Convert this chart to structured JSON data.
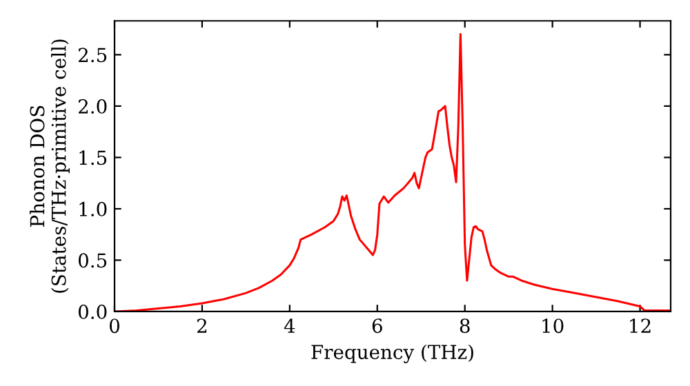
{
  "chart_data": {
    "type": "line",
    "xlabel": "Frequency (THz)",
    "ylabel": "Phonon DOS\n(States/THz·primitive cell)",
    "x": [
      0,
      0.5,
      1,
      1.5,
      2,
      2.5,
      3,
      3.3,
      3.6,
      3.8,
      4.0,
      4.1,
      4.2,
      4.25,
      4.5,
      4.8,
      5.0,
      5.1,
      5.15,
      5.2,
      5.25,
      5.3,
      5.4,
      5.5,
      5.6,
      5.8,
      5.9,
      5.95,
      6.0,
      6.05,
      6.15,
      6.25,
      6.4,
      6.6,
      6.8,
      6.85,
      6.9,
      6.95,
      7.0,
      7.1,
      7.15,
      7.25,
      7.3,
      7.4,
      7.45,
      7.55,
      7.6,
      7.65,
      7.7,
      7.75,
      7.8,
      7.85,
      7.9,
      7.95,
      8.0,
      8.05,
      8.15,
      8.2,
      8.25,
      8.3,
      8.4,
      8.45,
      8.5,
      8.6,
      8.7,
      8.8,
      9.0,
      9.1,
      9.3,
      9.6,
      10,
      10.5,
      11,
      11.5,
      11.8,
      12.0,
      12.1,
      12.7
    ],
    "series": [
      {
        "color": "#ff0000",
        "values": [
          0,
          0.01,
          0.03,
          0.05,
          0.08,
          0.12,
          0.18,
          0.23,
          0.3,
          0.36,
          0.45,
          0.52,
          0.62,
          0.7,
          0.75,
          0.82,
          0.88,
          0.95,
          1.02,
          1.12,
          1.08,
          1.13,
          0.93,
          0.8,
          0.7,
          0.6,
          0.55,
          0.6,
          0.75,
          1.05,
          1.12,
          1.06,
          1.13,
          1.2,
          1.3,
          1.35,
          1.25,
          1.2,
          1.3,
          1.5,
          1.55,
          1.58,
          1.7,
          1.95,
          1.96,
          2.0,
          1.8,
          1.62,
          1.5,
          1.42,
          1.26,
          1.8,
          2.7,
          1.8,
          0.65,
          0.3,
          0.72,
          0.82,
          0.83,
          0.8,
          0.78,
          0.7,
          0.6,
          0.45,
          0.41,
          0.38,
          0.34,
          0.34,
          0.3,
          0.26,
          0.22,
          0.18,
          0.14,
          0.1,
          0.07,
          0.05,
          0.01,
          0.01
        ]
      }
    ],
    "xlim": [
      0,
      12.7
    ],
    "ylim": [
      0,
      2.83
    ],
    "xticks": [
      0,
      2,
      4,
      6,
      8,
      10,
      12
    ],
    "yticks": [
      {
        "value": 0,
        "label": "0.0"
      },
      0.5,
      {
        "value": 1,
        "label": "1.0"
      },
      1.5,
      {
        "value": 2,
        "label": "2.0"
      },
      2.5
    ],
    "grid": false,
    "legend": false
  }
}
